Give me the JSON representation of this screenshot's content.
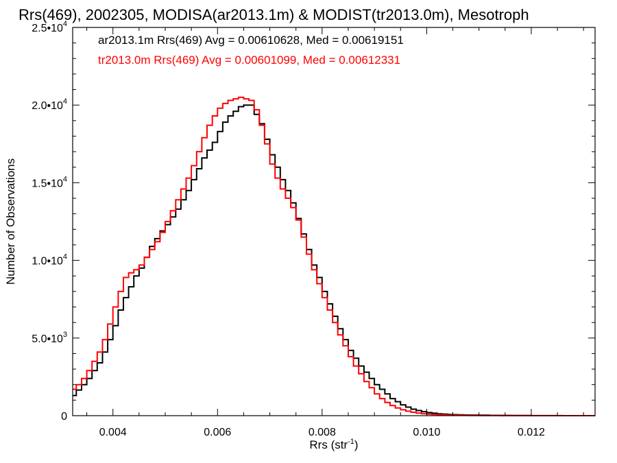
{
  "chart_data": {
    "type": "line",
    "title": "Rrs(469), 2002305, MODISA(ar2013.1m) & MODIST(tr2013.0m), Mesotroph",
    "xlabel_main": "Rrs (str",
    "xlabel_sup": "-1",
    "xlabel_close": ")",
    "ylabel": "Number of Observations",
    "xlim": [
      0.00323,
      0.01322
    ],
    "ylim": [
      0,
      25000
    ],
    "xticks": [
      {
        "value": 0.004,
        "label": "0.004"
      },
      {
        "value": 0.006,
        "label": "0.006"
      },
      {
        "value": 0.008,
        "label": "0.008"
      },
      {
        "value": 0.01,
        "label": "0.010"
      },
      {
        "value": 0.012,
        "label": "0.012"
      }
    ],
    "yticks": [
      {
        "value": 0,
        "label": "0",
        "sup": ""
      },
      {
        "value": 5000,
        "label": "5.0•10",
        "sup": "3"
      },
      {
        "value": 10000,
        "label": "1.0•10",
        "sup": "4"
      },
      {
        "value": 15000,
        "label": "1.5•10",
        "sup": "4"
      },
      {
        "value": 20000,
        "label": "2.0•10",
        "sup": "4"
      },
      {
        "value": 25000,
        "label": "2.5•10",
        "sup": "4"
      }
    ],
    "legend": [
      {
        "text": "ar2013.1m Rrs(469) Avg = 0.00610628, Med = 0.00619151",
        "color": "#000000"
      },
      {
        "text": "tr2013.0m Rrs(469) Avg = 0.00601099, Med = 0.00612331",
        "color": "#ff0000"
      }
    ],
    "series": [
      {
        "name": "ar2013.1m",
        "color": "#000000",
        "x": [
          0.00323,
          0.0033,
          0.0034,
          0.0035,
          0.0036,
          0.0037,
          0.0038,
          0.0039,
          0.004,
          0.0041,
          0.0042,
          0.0043,
          0.0044,
          0.0045,
          0.0046,
          0.0047,
          0.0048,
          0.0049,
          0.005,
          0.0051,
          0.0052,
          0.0053,
          0.0054,
          0.0055,
          0.0056,
          0.0057,
          0.0058,
          0.0059,
          0.006,
          0.0061,
          0.0062,
          0.0063,
          0.0064,
          0.0065,
          0.0066,
          0.0067,
          0.0068,
          0.0069,
          0.007,
          0.0071,
          0.0072,
          0.0073,
          0.0074,
          0.0075,
          0.0076,
          0.0077,
          0.0078,
          0.0079,
          0.008,
          0.0081,
          0.0082,
          0.0083,
          0.0084,
          0.0085,
          0.0086,
          0.0087,
          0.0088,
          0.0089,
          0.009,
          0.0091,
          0.0092,
          0.0093,
          0.0094,
          0.0095,
          0.0096,
          0.0097,
          0.0098,
          0.0099,
          0.01,
          0.0101,
          0.0102,
          0.0103,
          0.0104,
          0.0105,
          0.0106,
          0.0107,
          0.0108,
          0.011,
          0.0112,
          0.0114,
          0.0116,
          0.0118,
          0.012,
          0.0122,
          0.0124,
          0.0126,
          0.0128,
          0.013,
          0.01322
        ],
        "y": [
          1300,
          1650,
          2000,
          2400,
          2900,
          3400,
          4100,
          4900,
          5800,
          6800,
          7600,
          8300,
          9000,
          9500,
          10200,
          10900,
          11400,
          11900,
          12300,
          12800,
          13300,
          13900,
          14500,
          15200,
          15900,
          16600,
          17100,
          17600,
          18300,
          18900,
          19300,
          19600,
          19900,
          20000,
          20000,
          19400,
          18800,
          17800,
          16800,
          16000,
          15200,
          14500,
          13700,
          12700,
          11700,
          10700,
          9700,
          8900,
          8000,
          7200,
          6400,
          5600,
          4900,
          4200,
          3700,
          3200,
          2800,
          2400,
          2000,
          1700,
          1400,
          1100,
          900,
          700,
          550,
          420,
          330,
          260,
          200,
          160,
          120,
          95,
          80,
          65,
          55,
          45,
          38,
          30,
          22,
          16,
          11,
          8,
          6,
          4,
          3,
          2,
          2,
          1,
          1
        ]
      },
      {
        "name": "tr2013.0m",
        "color": "#ff0000",
        "x": [
          0.00323,
          0.0033,
          0.0034,
          0.0035,
          0.0036,
          0.0037,
          0.0038,
          0.0039,
          0.004,
          0.0041,
          0.0042,
          0.0043,
          0.0044,
          0.0045,
          0.0046,
          0.0047,
          0.0048,
          0.0049,
          0.005,
          0.0051,
          0.0052,
          0.0053,
          0.0054,
          0.0055,
          0.0056,
          0.0057,
          0.0058,
          0.0059,
          0.006,
          0.0061,
          0.0062,
          0.0063,
          0.0064,
          0.0065,
          0.0066,
          0.0067,
          0.0068,
          0.0069,
          0.007,
          0.0071,
          0.0072,
          0.0073,
          0.0074,
          0.0075,
          0.0076,
          0.0077,
          0.0078,
          0.0079,
          0.008,
          0.0081,
          0.0082,
          0.0083,
          0.0084,
          0.0085,
          0.0086,
          0.0087,
          0.0088,
          0.0089,
          0.009,
          0.0091,
          0.0092,
          0.0093,
          0.0094,
          0.0095,
          0.0096,
          0.0097,
          0.0098,
          0.0099,
          0.01,
          0.0101,
          0.0102,
          0.0103,
          0.0104,
          0.0105,
          0.0106,
          0.0107,
          0.0108,
          0.011,
          0.0112,
          0.0114,
          0.0116,
          0.0118,
          0.012,
          0.0122,
          0.0124,
          0.0126,
          0.0128,
          0.013,
          0.01322
        ],
        "y": [
          1700,
          2000,
          2400,
          2900,
          3500,
          4100,
          4900,
          5900,
          7000,
          8000,
          8900,
          9200,
          9400,
          9700,
          10200,
          10700,
          11200,
          11800,
          12500,
          13200,
          13900,
          14600,
          15300,
          16100,
          17000,
          17900,
          18700,
          19300,
          19800,
          20100,
          20300,
          20400,
          20500,
          20400,
          20300,
          19700,
          18700,
          17500,
          16200,
          15300,
          14600,
          14000,
          13400,
          12600,
          11500,
          10400,
          9400,
          8500,
          7600,
          6800,
          6000,
          5200,
          4500,
          3800,
          3200,
          2700,
          2200,
          1800,
          1400,
          1100,
          850,
          650,
          500,
          380,
          290,
          220,
          170,
          130,
          100,
          80,
          65,
          50,
          40,
          32,
          26,
          20,
          16,
          12,
          9,
          6,
          4,
          3,
          2,
          2,
          1,
          1,
          1,
          1,
          1
        ]
      }
    ]
  }
}
